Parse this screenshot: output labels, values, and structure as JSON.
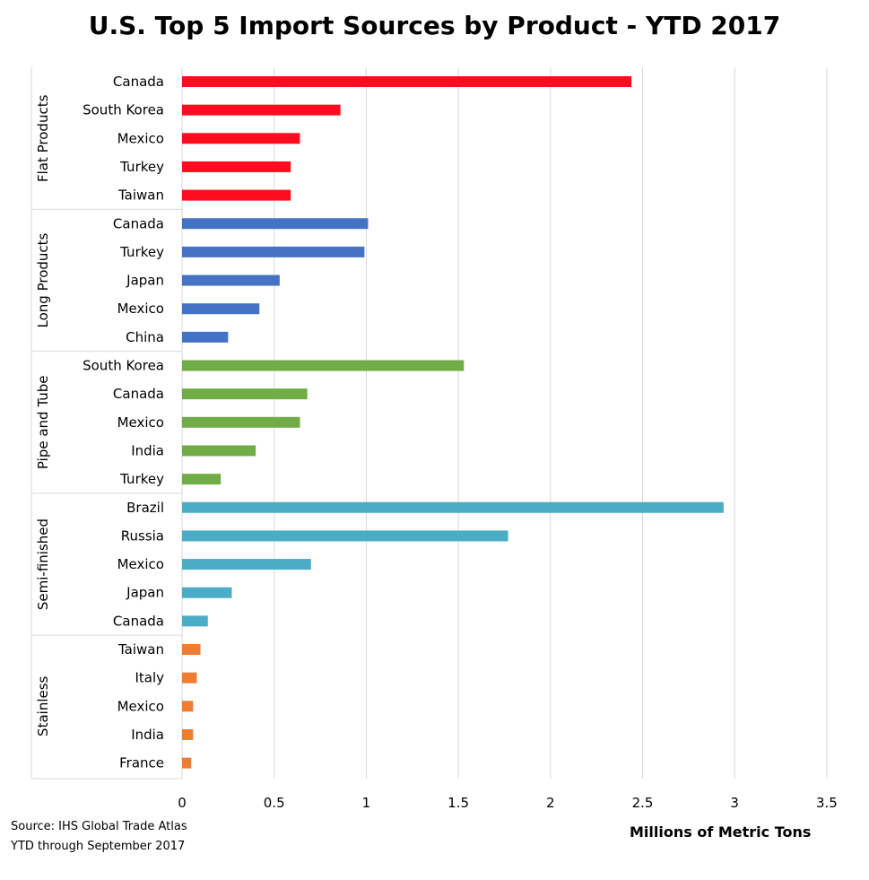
{
  "chart_data": {
    "type": "bar",
    "orientation": "horizontal",
    "title": "U.S. Top 5 Import Sources by Product - YTD 2017",
    "xlabel": "Millions of Metric Tons",
    "xlim": [
      0,
      3.5
    ],
    "xticks": [
      "0",
      "0.5",
      "1",
      "1.5",
      "2",
      "2.5",
      "3",
      "3.5"
    ],
    "grid": "vertical",
    "groups": [
      {
        "name": "Flat Products",
        "color": "#ff0d1f",
        "categories": [
          "Canada",
          "South Korea",
          "Mexico",
          "Turkey",
          "Taiwan"
        ],
        "values": [
          2.44,
          0.86,
          0.64,
          0.59,
          0.59
        ]
      },
      {
        "name": "Long Products",
        "color": "#4472c4",
        "categories": [
          "Canada",
          "Turkey",
          "Japan",
          "Mexico",
          "China"
        ],
        "values": [
          1.01,
          0.99,
          0.53,
          0.42,
          0.25
        ]
      },
      {
        "name": "Pipe and Tube",
        "color": "#70ad47",
        "categories": [
          "South Korea",
          "Canada",
          "Mexico",
          "India",
          "Turkey"
        ],
        "values": [
          1.53,
          0.68,
          0.64,
          0.4,
          0.21
        ]
      },
      {
        "name": "Semi-finished",
        "color": "#4bacc6",
        "categories": [
          "Brazil",
          "Russia",
          "Mexico",
          "Japan",
          "Canada"
        ],
        "values": [
          2.94,
          1.77,
          0.7,
          0.27,
          0.14
        ]
      },
      {
        "name": "Stainless",
        "color": "#ed7d31",
        "categories": [
          "Taiwan",
          "Italy",
          "Mexico",
          "India",
          "France"
        ],
        "values": [
          0.1,
          0.08,
          0.06,
          0.06,
          0.05
        ]
      }
    ]
  },
  "footer": {
    "source_line1": "Source: IHS Global Trade Atlas",
    "source_line2": "YTD through September 2017"
  }
}
